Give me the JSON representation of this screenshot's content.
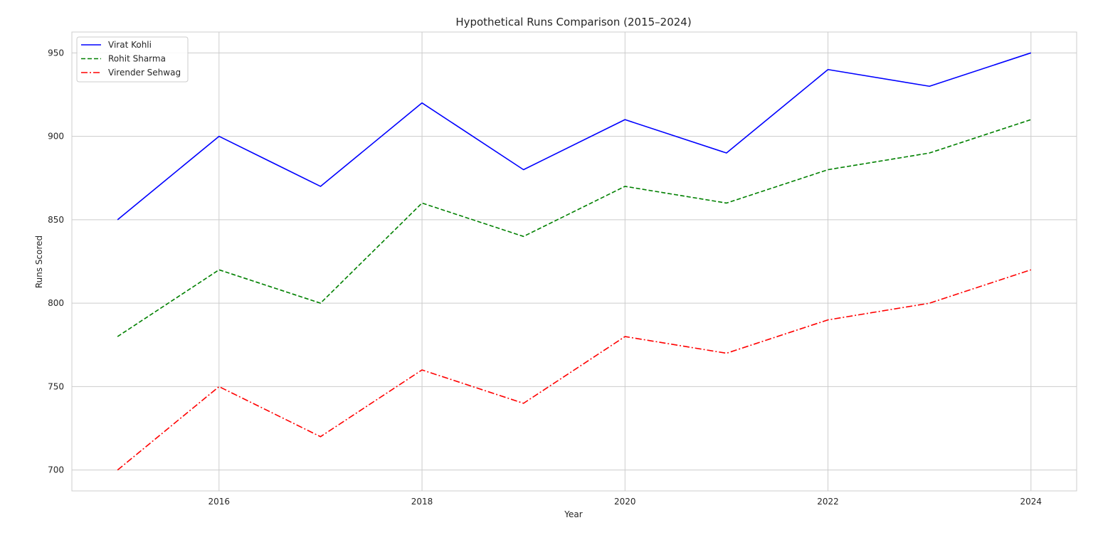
{
  "chart_data": {
    "type": "line",
    "title": "Hypothetical Runs Comparison (2015–2024)",
    "xlabel": "Year",
    "ylabel": "Runs Scored",
    "x": [
      2015,
      2016,
      2017,
      2018,
      2019,
      2020,
      2021,
      2022,
      2023,
      2024
    ],
    "xlim": [
      2014.55,
      2024.45
    ],
    "ylim": [
      687.5,
      962.5
    ],
    "xticks": [
      2016,
      2018,
      2020,
      2022,
      2024
    ],
    "yticks": [
      700,
      750,
      800,
      850,
      900,
      950
    ],
    "grid": true,
    "legend_position": "top-left",
    "series": [
      {
        "name": "Virat Kohli",
        "values": [
          850,
          900,
          870,
          920,
          880,
          910,
          890,
          940,
          930,
          950
        ],
        "color": "#0000ff",
        "style": "solid"
      },
      {
        "name": "Rohit Sharma",
        "values": [
          780,
          820,
          800,
          860,
          840,
          870,
          860,
          880,
          890,
          910
        ],
        "color": "#008000",
        "style": "dashed"
      },
      {
        "name": "Virender Sehwag",
        "values": [
          700,
          750,
          720,
          760,
          740,
          780,
          770,
          790,
          800,
          820
        ],
        "color": "#ff0000",
        "style": "dashdot"
      }
    ]
  }
}
